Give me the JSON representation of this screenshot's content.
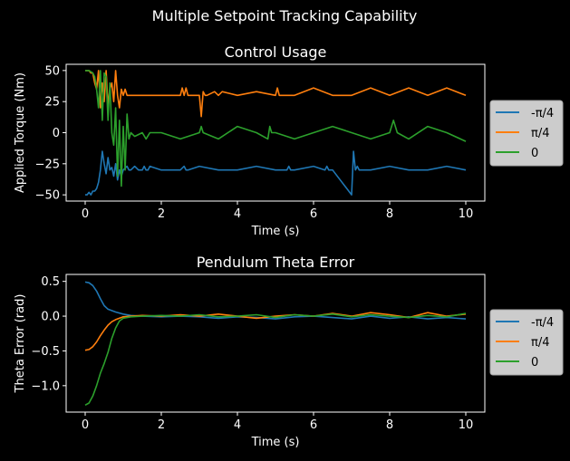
{
  "figure": {
    "suptitle": "Multiple Setpoint Tracking Capability",
    "background": "#000000",
    "foreground": "#ffffff"
  },
  "legend": {
    "placement": "outside-right",
    "background": "#cccccc",
    "entries": [
      "-π/4",
      "π/4",
      "0"
    ]
  },
  "chart_data": [
    {
      "type": "line",
      "title": "Control Usage",
      "xlabel": "Time (s)",
      "ylabel": "Applied Torque (Nm)",
      "xlim": [
        -0.5,
        10.5
      ],
      "ylim": [
        -55,
        55
      ],
      "xticks": [
        0,
        2,
        4,
        6,
        8,
        10
      ],
      "xtick_labels": [
        "0",
        "2",
        "4",
        "6",
        "8",
        "10"
      ],
      "yticks": [
        50,
        25,
        0,
        -25,
        -50
      ],
      "ytick_labels": [
        "50",
        "25",
        "0",
        "−25",
        "−50"
      ],
      "grid": false,
      "legend": "outside-right",
      "series": [
        {
          "name": "-π/4",
          "color": "#1f77b4",
          "x": [
            0,
            0.05,
            0.1,
            0.15,
            0.2,
            0.25,
            0.3,
            0.35,
            0.4,
            0.45,
            0.5,
            0.55,
            0.6,
            0.65,
            0.7,
            0.75,
            0.8,
            0.85,
            0.9,
            0.95,
            1.0,
            1.1,
            1.15,
            1.2,
            1.3,
            1.4,
            1.5,
            1.55,
            1.6,
            1.65,
            1.7,
            2.0,
            2.5,
            2.6,
            2.65,
            2.7,
            3.0,
            3.5,
            4.0,
            4.5,
            5.0,
            5.3,
            5.35,
            5.4,
            5.5,
            6.0,
            6.3,
            6.35,
            6.4,
            6.5,
            7.0,
            7.05,
            7.1,
            7.15,
            7.2,
            7.5,
            8.0,
            8.5,
            9.0,
            9.5,
            10.0
          ],
          "y": [
            -50,
            -50,
            -48,
            -50,
            -47,
            -47,
            -45,
            -40,
            -30,
            -15,
            -25,
            -33,
            -20,
            -30,
            -28,
            -35,
            -25,
            -38,
            -30,
            -35,
            -30,
            -27,
            -30,
            -30,
            -27,
            -30,
            -30,
            -27,
            -30,
            -30,
            -27,
            -30,
            -30,
            -27,
            -30,
            -30,
            -27,
            -30,
            -30,
            -27,
            -30,
            -30,
            -27,
            -30,
            -30,
            -27,
            -30,
            -27,
            -30,
            -30,
            -50,
            -15,
            -30,
            -27,
            -30,
            -30,
            -27,
            -30,
            -30,
            -27,
            -30
          ]
        },
        {
          "name": "π/4",
          "color": "#ff7f0e",
          "x": [
            0,
            0.1,
            0.15,
            0.2,
            0.25,
            0.3,
            0.35,
            0.4,
            0.45,
            0.5,
            0.55,
            0.6,
            0.65,
            0.7,
            0.75,
            0.8,
            0.85,
            0.9,
            0.95,
            1.0,
            1.05,
            1.1,
            1.2,
            1.5,
            2.0,
            2.5,
            2.55,
            2.6,
            2.65,
            2.7,
            3.0,
            3.05,
            3.1,
            3.15,
            3.2,
            3.4,
            3.5,
            3.6,
            4.0,
            4.5,
            5.0,
            5.05,
            5.1,
            5.5,
            6.0,
            6.5,
            7.0,
            7.5,
            8.0,
            8.5,
            9.0,
            9.5,
            10.0
          ],
          "y": [
            50,
            50,
            48,
            48,
            40,
            35,
            50,
            20,
            40,
            25,
            50,
            22,
            35,
            40,
            25,
            50,
            30,
            20,
            35,
            30,
            35,
            30,
            30,
            30,
            30,
            30,
            36,
            30,
            36,
            30,
            30,
            13,
            33,
            30,
            30,
            33,
            30,
            33,
            30,
            33,
            30,
            36,
            30,
            30,
            36,
            30,
            30,
            36,
            30,
            36,
            30,
            36,
            30
          ]
        },
        {
          "name": "0",
          "color": "#2ca02c",
          "x": [
            0,
            0.1,
            0.2,
            0.25,
            0.3,
            0.35,
            0.4,
            0.45,
            0.5,
            0.55,
            0.6,
            0.65,
            0.7,
            0.75,
            0.8,
            0.85,
            0.9,
            0.95,
            1.0,
            1.05,
            1.1,
            1.15,
            1.2,
            1.3,
            1.5,
            1.6,
            1.7,
            2.0,
            2.5,
            3.0,
            3.05,
            3.1,
            3.5,
            4.0,
            4.5,
            4.8,
            4.85,
            4.9,
            5.0,
            5.5,
            6.0,
            6.5,
            7.0,
            7.5,
            8.0,
            8.1,
            8.2,
            8.5,
            9.0,
            9.5,
            10.0
          ],
          "y": [
            50,
            50,
            48,
            45,
            35,
            20,
            50,
            10,
            48,
            45,
            10,
            40,
            0,
            -10,
            20,
            -35,
            10,
            -43,
            5,
            -30,
            15,
            -5,
            0,
            -3,
            0,
            -5,
            0,
            0,
            -5,
            0,
            5,
            0,
            -5,
            5,
            0,
            -5,
            5,
            0,
            0,
            -5,
            0,
            5,
            0,
            -5,
            0,
            10,
            0,
            -5,
            5,
            0,
            -7
          ]
        }
      ]
    },
    {
      "type": "line",
      "title": "Pendulum Theta Error",
      "xlabel": "Time (s)",
      "ylabel": "Theta Error (rad)",
      "xlim": [
        -0.5,
        10.5
      ],
      "ylim": [
        -1.38,
        0.6
      ],
      "xticks": [
        0,
        2,
        4,
        6,
        8,
        10
      ],
      "xtick_labels": [
        "0",
        "2",
        "4",
        "6",
        "8",
        "10"
      ],
      "yticks": [
        0.5,
        0.0,
        -0.5,
        -1.0
      ],
      "ytick_labels": [
        "0.5",
        "0.0",
        "−0.5",
        "−1.0"
      ],
      "grid": false,
      "legend": "outside-right",
      "series": [
        {
          "name": "-π/4",
          "color": "#1f77b4",
          "x": [
            0,
            0.1,
            0.2,
            0.3,
            0.4,
            0.5,
            0.6,
            0.8,
            1.0,
            1.2,
            1.5,
            2.0,
            2.5,
            3.0,
            3.5,
            4.0,
            4.5,
            5.0,
            5.5,
            6.0,
            6.5,
            7.0,
            7.5,
            8.0,
            8.5,
            9.0,
            9.5,
            10.0
          ],
          "y": [
            0.49,
            0.48,
            0.44,
            0.36,
            0.25,
            0.15,
            0.1,
            0.06,
            0.03,
            0.01,
            0.0,
            -0.01,
            0.0,
            -0.01,
            -0.03,
            -0.01,
            -0.02,
            -0.04,
            -0.01,
            0.0,
            -0.02,
            -0.04,
            0.0,
            -0.03,
            -0.01,
            -0.04,
            -0.02,
            -0.04
          ]
        },
        {
          "name": "π/4",
          "color": "#ff7f0e",
          "x": [
            0,
            0.1,
            0.2,
            0.3,
            0.4,
            0.5,
            0.6,
            0.7,
            0.8,
            1.0,
            1.2,
            1.5,
            2.0,
            2.5,
            3.0,
            3.5,
            4.0,
            4.5,
            5.0,
            5.5,
            6.0,
            6.5,
            7.0,
            7.5,
            8.0,
            8.5,
            9.0,
            9.5,
            10.0
          ],
          "y": [
            -0.49,
            -0.48,
            -0.44,
            -0.37,
            -0.28,
            -0.2,
            -0.13,
            -0.08,
            -0.05,
            -0.01,
            0.0,
            0.01,
            0.0,
            0.02,
            0.0,
            0.03,
            0.0,
            -0.03,
            0.0,
            0.02,
            0.0,
            0.04,
            0.0,
            0.05,
            0.02,
            -0.02,
            0.05,
            0.0,
            0.03
          ]
        },
        {
          "name": "0",
          "color": "#2ca02c",
          "x": [
            0,
            0.1,
            0.2,
            0.3,
            0.4,
            0.5,
            0.6,
            0.7,
            0.8,
            0.9,
            1.0,
            1.2,
            1.5,
            2.0,
            2.5,
            3.0,
            3.5,
            4.0,
            4.5,
            5.0,
            5.5,
            6.0,
            6.5,
            7.0,
            7.5,
            8.0,
            8.5,
            9.0,
            9.5,
            10.0
          ],
          "y": [
            -1.28,
            -1.25,
            -1.15,
            -1.0,
            -0.82,
            -0.68,
            -0.52,
            -0.32,
            -0.17,
            -0.07,
            -0.03,
            -0.01,
            0.0,
            0.01,
            0.0,
            0.02,
            -0.01,
            0.0,
            0.02,
            -0.02,
            0.02,
            0.0,
            0.03,
            -0.01,
            0.02,
            0.0,
            -0.02,
            0.01,
            -0.01,
            0.04
          ]
        }
      ]
    }
  ]
}
